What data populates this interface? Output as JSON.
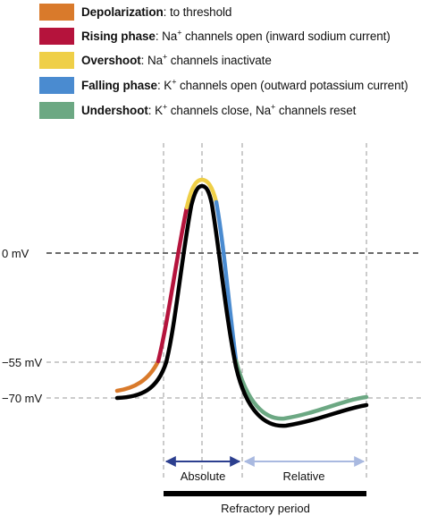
{
  "legend": {
    "items": [
      {
        "title": "Depolarization",
        "sep": ": ",
        "pre": "to threshold",
        "sup": "",
        "post": "",
        "color": "#d97a2b"
      },
      {
        "title": "Rising phase",
        "sep": ": ",
        "pre": "Na",
        "sup": "+",
        "post": " channels open (inward sodium current)",
        "color": "#b5133c"
      },
      {
        "title": "Overshoot",
        "sep": ": ",
        "pre": "Na",
        "sup": "+",
        "post": " channels inactivate",
        "color": "#efcf47"
      },
      {
        "title": "Falling phase",
        "sep": ": ",
        "pre": "K",
        "sup": "+",
        "post": " channels open (outward potassium current)",
        "color": "#4a8bd0"
      },
      {
        "title": "Undershoot",
        "sep": ": ",
        "pre": "K",
        "sup": "+",
        "post": " channels close, Na",
        "sup2": "+",
        "post2": " channels reset",
        "color": "#6ca883"
      }
    ]
  },
  "axis": {
    "zero_label": "0 mV",
    "threshold_label": "−55 mV",
    "rest_label": "−70 mV"
  },
  "refractory": {
    "absolute_label": "Absolute",
    "relative_label": "Relative",
    "period_label": "Refractory period",
    "absolute_color": "#2c3f8f",
    "relative_color": "#a9b9e0",
    "bar_color": "#000000"
  }
}
